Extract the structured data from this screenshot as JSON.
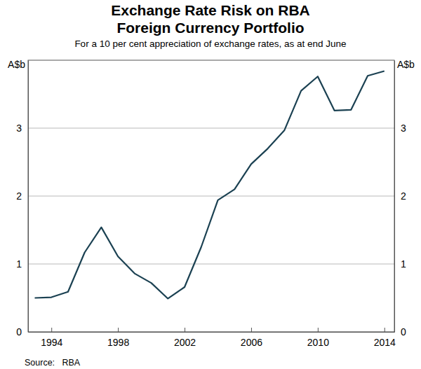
{
  "chart_data": {
    "type": "line",
    "title": [
      "Exchange Rate Risk on RBA",
      "Foreign Currency Portfolio"
    ],
    "subtitle": "For a 10 per cent appreciation of exchange rates, as at end June",
    "ylabel": "A$b",
    "source": "Source:   RBA",
    "x": [
      1993,
      1994,
      1995,
      1996,
      1997,
      1998,
      1999,
      2000,
      2001,
      2002,
      2003,
      2004,
      2005,
      2006,
      2007,
      2008,
      2009,
      2010,
      2011,
      2012,
      2013,
      2014
    ],
    "values": [
      0.5,
      0.51,
      0.59,
      1.17,
      1.54,
      1.11,
      0.86,
      0.72,
      0.49,
      0.66,
      1.25,
      1.94,
      2.1,
      2.47,
      2.7,
      2.97,
      3.55,
      3.76,
      3.26,
      3.27,
      3.77,
      3.84
    ],
    "color": "#1b4152",
    "xlim": [
      1992.6,
      2014.6
    ],
    "xticks": [
      1994,
      1998,
      2002,
      2006,
      2010,
      2014
    ],
    "ylim": [
      0,
      4
    ],
    "yticks": [
      0,
      1,
      2,
      3
    ],
    "grid": true
  }
}
